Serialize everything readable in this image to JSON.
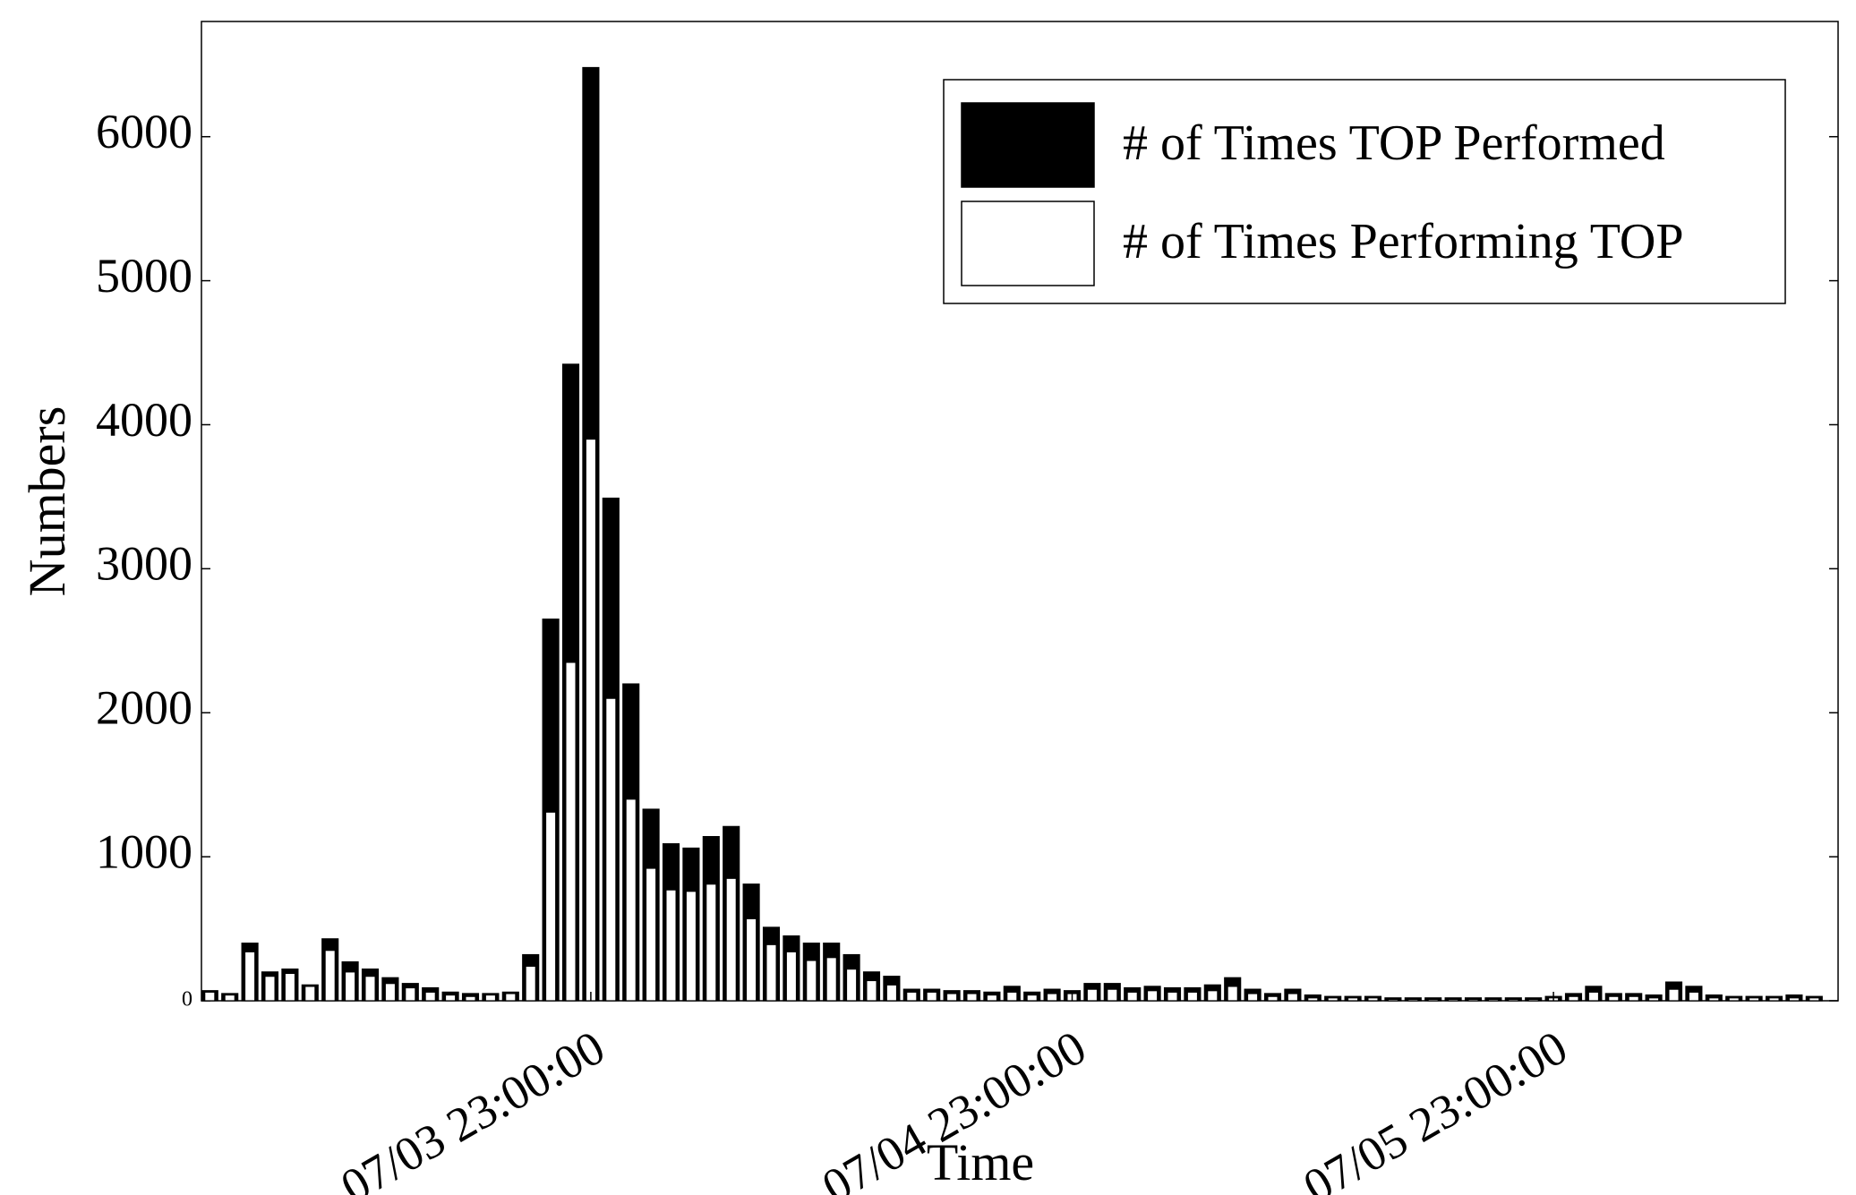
{
  "chart_data": {
    "type": "bar",
    "x_label": "Time",
    "y_label": "Numbers",
    "categories": [
      null,
      null,
      null,
      null,
      null,
      null,
      null,
      null,
      null,
      null,
      null,
      null,
      null,
      null,
      null,
      null,
      null,
      null,
      null,
      "07/03 23:00:00",
      null,
      null,
      null,
      null,
      null,
      null,
      null,
      null,
      null,
      null,
      null,
      null,
      null,
      null,
      null,
      null,
      null,
      null,
      null,
      null,
      null,
      null,
      null,
      "07/04 23:00:00",
      null,
      null,
      null,
      null,
      null,
      null,
      null,
      null,
      null,
      null,
      null,
      null,
      null,
      null,
      null,
      null,
      null,
      null,
      null,
      null,
      null,
      null,
      null,
      "07/05 23:00:00",
      null,
      null,
      null,
      null,
      null,
      null,
      null,
      null,
      null,
      null,
      null,
      null,
      null
    ],
    "series": [
      {
        "name": "# of Times TOP Performed",
        "color": "#000000",
        "values": [
          70,
          50,
          400,
          200,
          220,
          110,
          430,
          270,
          220,
          160,
          120,
          90,
          60,
          50,
          50,
          60,
          320,
          2650,
          4420,
          6480,
          3490,
          2200,
          1330,
          1090,
          1060,
          1140,
          1210,
          810,
          510,
          450,
          400,
          400,
          320,
          200,
          170,
          80,
          80,
          70,
          70,
          60,
          100,
          60,
          80,
          70,
          120,
          120,
          90,
          100,
          90,
          90,
          110,
          160,
          80,
          50,
          80,
          40,
          30,
          30,
          30,
          20,
          20,
          20,
          20,
          20,
          20,
          20,
          20,
          30,
          50,
          100,
          50,
          50,
          40,
          130,
          100,
          40,
          30,
          30,
          30,
          40,
          30
        ]
      },
      {
        "name": "# of Times Performing TOP",
        "color": "#ffffff",
        "values": [
          60,
          40,
          340,
          170,
          190,
          100,
          350,
          200,
          170,
          120,
          90,
          60,
          40,
          30,
          40,
          50,
          240,
          1310,
          2350,
          3900,
          2100,
          1400,
          920,
          770,
          760,
          810,
          850,
          570,
          390,
          340,
          280,
          300,
          220,
          140,
          110,
          60,
          60,
          50,
          50,
          40,
          60,
          40,
          50,
          50,
          80,
          80,
          60,
          70,
          60,
          60,
          70,
          100,
          50,
          30,
          50,
          20,
          20,
          20,
          20,
          10,
          10,
          10,
          10,
          10,
          10,
          10,
          10,
          20,
          30,
          60,
          30,
          30,
          20,
          80,
          60,
          20,
          20,
          20,
          20,
          20,
          20
        ]
      }
    ],
    "ylim": [
      0,
      6800
    ],
    "yticks": [
      0,
      1000,
      2000,
      3000,
      4000,
      5000,
      6000
    ],
    "legend": "upper right"
  }
}
